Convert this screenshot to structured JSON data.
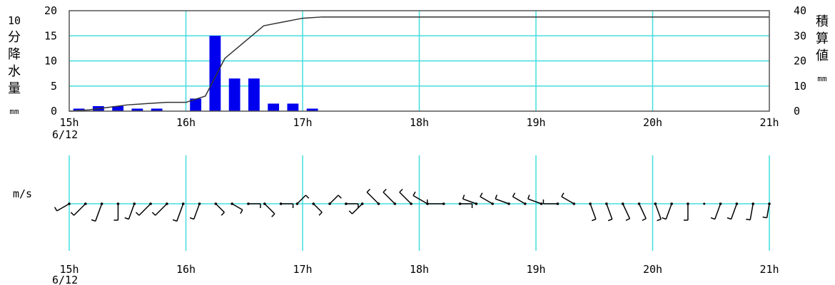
{
  "chart_data": [
    {
      "type": "bar",
      "left_label_chars": [
        "10",
        "分",
        "降",
        "水",
        "量"
      ],
      "left_unit": "mm",
      "right_label_chars": [
        "積",
        "算",
        "値"
      ],
      "right_unit": "mm",
      "x_ticks": [
        "15h",
        "16h",
        "17h",
        "18h",
        "19h",
        "20h",
        "21h"
      ],
      "x_date_label": "6/12",
      "y_left_ticks": [
        "0",
        "5",
        "10",
        "15",
        "20"
      ],
      "y_right_ticks": [
        "0",
        "10",
        "20",
        "30",
        "40"
      ],
      "ylim_left": [
        0,
        20
      ],
      "ylim_right": [
        0,
        40
      ],
      "bar_color": "#0000ee",
      "grid_color": "#44dddd",
      "grid": true,
      "series": [
        {
          "values": [
            0.5,
            1.0,
            1.0,
            0.5,
            0.5,
            0.0,
            2.5,
            15.0,
            6.5,
            6.5,
            1.5,
            1.5,
            0.5,
            0,
            0,
            0,
            0,
            0,
            0,
            0,
            0,
            0,
            0,
            0,
            0,
            0,
            0,
            0,
            0,
            0,
            0,
            0,
            0,
            0,
            0,
            0
          ]
        }
      ],
      "cumulative": [
        0.5,
        1.5,
        2.5,
        3.0,
        3.5,
        3.5,
        6.0,
        21.0,
        27.5,
        34.0,
        35.5,
        37.0,
        37.5,
        37.5,
        37.5,
        37.5,
        37.5,
        37.5,
        37.5,
        37.5,
        37.5,
        37.5,
        37.5,
        37.5,
        37.5,
        37.5,
        37.5,
        37.5,
        37.5,
        37.5,
        37.5,
        37.5,
        37.5,
        37.5,
        37.5,
        37.5
      ]
    },
    {
      "type": "wind",
      "y_unit": "m/s",
      "x_ticks": [
        "15h",
        "16h",
        "17h",
        "18h",
        "19h",
        "20h",
        "21h"
      ],
      "x_date_label": "6/12",
      "wind_dirs": [
        240,
        225,
        200,
        180,
        200,
        225,
        225,
        200,
        200,
        135,
        120,
        90,
        135,
        90,
        45,
        135,
        45,
        90,
        225,
        315,
        315,
        315,
        300,
        270,
        90,
        290,
        300,
        290,
        300,
        290,
        270,
        300,
        160,
        160,
        155,
        155,
        160,
        200,
        180,
        0,
        200,
        200,
        190,
        190
      ],
      "wind_speeds": [
        4,
        5,
        6,
        5,
        5,
        5,
        5,
        6,
        5,
        3,
        3,
        3,
        4,
        3,
        3,
        3,
        3,
        3,
        4,
        5,
        5,
        5,
        5,
        5,
        3,
        4,
        4,
        4,
        4,
        4,
        4,
        4,
        5,
        5,
        5,
        5,
        5,
        5,
        5,
        0,
        5,
        5,
        5,
        4
      ]
    }
  ]
}
